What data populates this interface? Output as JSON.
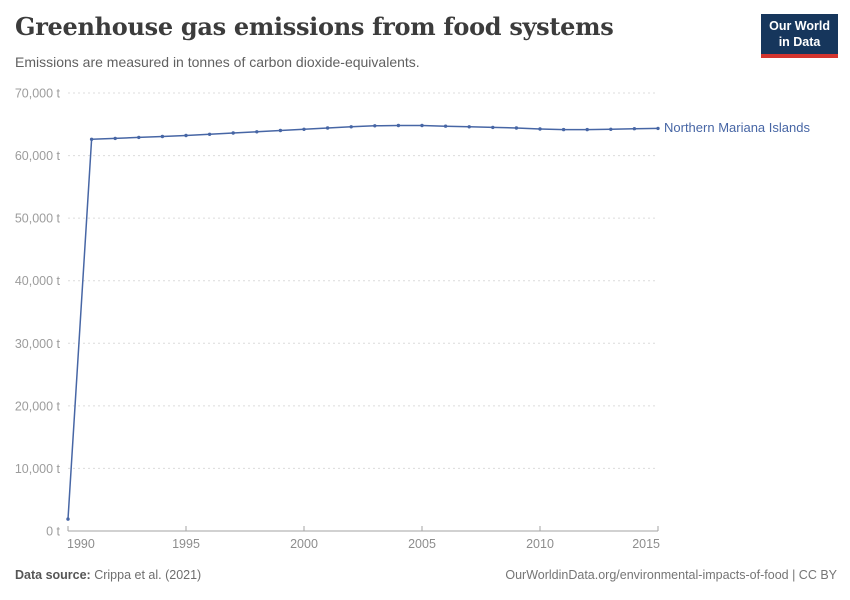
{
  "header": {
    "title": "Greenhouse gas emissions from food systems",
    "subtitle": "Emissions are measured in tonnes of carbon dioxide-equivalents.",
    "logo": {
      "line1": "Our World",
      "line2": "in Data",
      "bg_color": "#16365c",
      "accent_color": "#d3342e"
    }
  },
  "chart_data": {
    "type": "line",
    "title": "Greenhouse gas emissions from food systems",
    "subtitle": "Emissions are measured in tonnes of carbon dioxide-equivalents.",
    "xlabel": "",
    "ylabel": "tonnes of CO2-equivalents",
    "xlim": [
      1990,
      2015
    ],
    "ylim": [
      0,
      70000
    ],
    "grid": "horizontal-dashed",
    "legend": "line-end-label",
    "x_ticks": [
      1990,
      1995,
      2000,
      2005,
      2010,
      2015
    ],
    "y_ticks": [
      0,
      10000,
      20000,
      30000,
      40000,
      50000,
      60000,
      70000
    ],
    "y_tick_labels": [
      "0 t",
      "10,000 t",
      "20,000 t",
      "30,000 t",
      "40,000 t",
      "50,000 t",
      "60,000 t",
      "70,000 t"
    ],
    "series": [
      {
        "name": "Northern Mariana Islands",
        "color": "#4766a5",
        "x": [
          1990,
          1991,
          1992,
          1993,
          1994,
          1995,
          1996,
          1997,
          1998,
          1999,
          2000,
          2001,
          2002,
          2003,
          2004,
          2005,
          2006,
          2007,
          2008,
          2009,
          2010,
          2011,
          2012,
          2013,
          2014,
          2015
        ],
        "values": [
          1900,
          62600,
          62750,
          62900,
          63050,
          63200,
          63400,
          63600,
          63800,
          64000,
          64200,
          64400,
          64600,
          64750,
          64800,
          64800,
          64700,
          64600,
          64500,
          64400,
          64250,
          64150,
          64150,
          64200,
          64300,
          64350
        ]
      }
    ]
  },
  "colors": {
    "line": "#4766a5",
    "grid": "#dcdcdc",
    "axis": "#a3a3a3",
    "y_tick_label": "#9c9c9c",
    "x_tick_label": "#8d8d8d"
  },
  "footer": {
    "source_label": "Data source:",
    "source_value": " Crippa et al. (2021)",
    "credit": "OurWorldinData.org/environmental-impacts-of-food | CC BY"
  }
}
